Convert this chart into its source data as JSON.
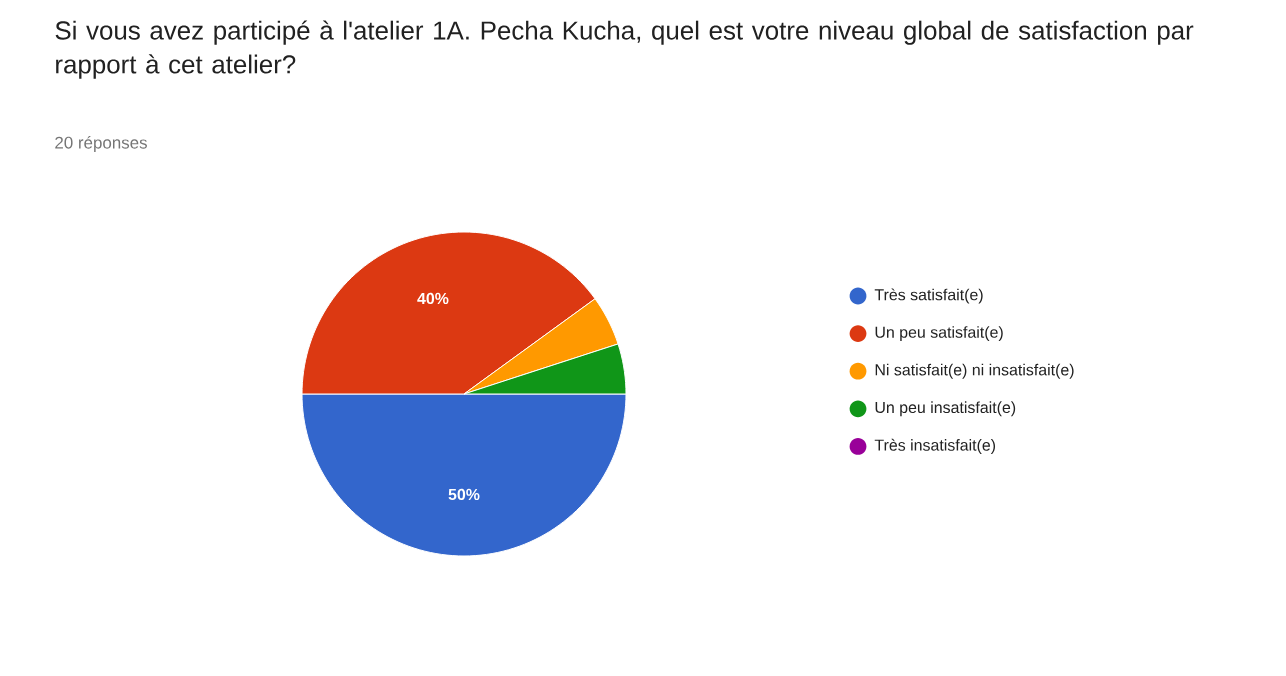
{
  "chart_data": {
    "type": "pie",
    "title": "Si vous avez participé à l'atelier 1A. Pecha Kucha, quel est votre niveau global de satisfaction par rapport à cet atelier?",
    "subtitle": "20 réponses",
    "categories": [
      "Très satisfait(e)",
      "Un peu satisfait(e)",
      "Ni satisfait(e) ni insatisfait(e)",
      "Un peu insatisfait(e)",
      "Très insatisfait(e)"
    ],
    "values": [
      50,
      40,
      5,
      5,
      0
    ],
    "colors": [
      "#3366cc",
      "#dc3912",
      "#ff9900",
      "#109618",
      "#990099"
    ],
    "value_labels": [
      "50%",
      "40%",
      null,
      null,
      null
    ],
    "legend": "right"
  }
}
